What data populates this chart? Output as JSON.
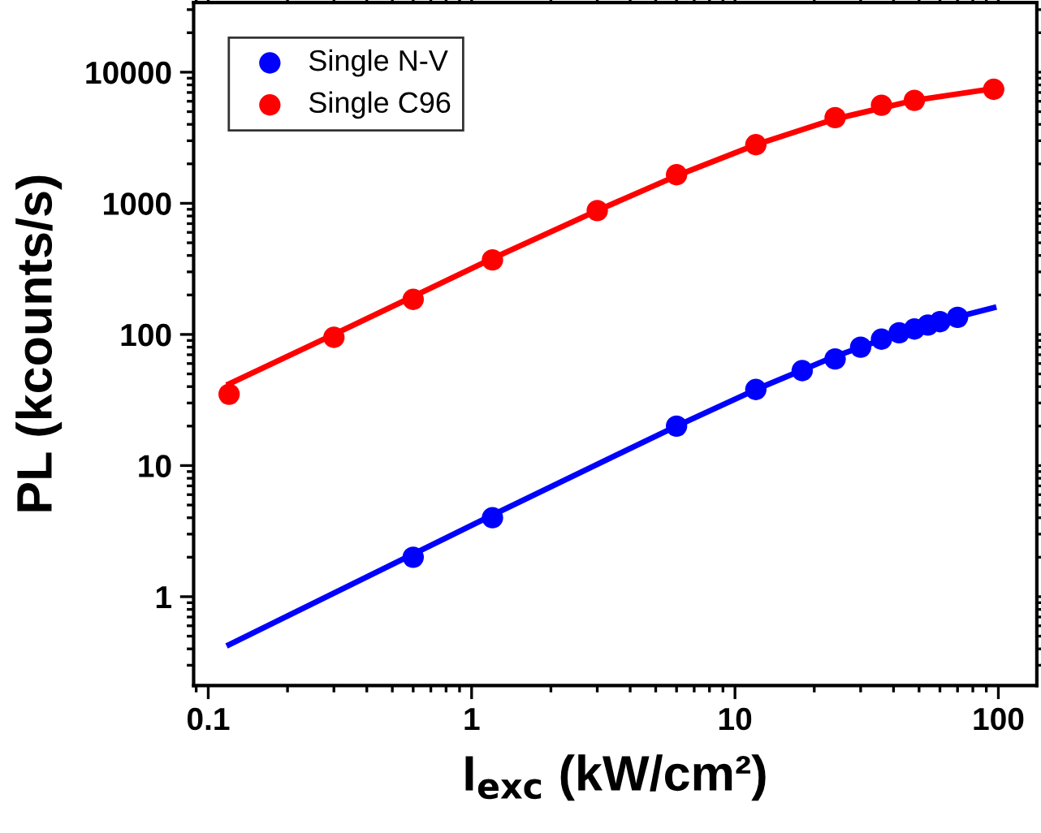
{
  "chart_data": {
    "type": "scatter",
    "xlabel": "I$_{exc}$ (kW/cm²)",
    "ylabel": "PL (kcounts/s)",
    "log": "xy",
    "xlim": [
      0.088,
      140
    ],
    "ylim": [
      0.21,
      34000
    ],
    "xticks": [
      0.1,
      1,
      10,
      100
    ],
    "yticks": [
      1,
      10,
      100,
      1000,
      10000
    ],
    "legend": "top left",
    "marker": "circle",
    "grid": false,
    "series": [
      {
        "name": "Single N-V",
        "color": "#0000ff",
        "x": [
          0.6,
          1.2,
          6,
          12,
          18,
          24,
          30,
          36,
          42,
          48,
          54,
          60,
          70
        ],
        "values": [
          2.0,
          4.0,
          20,
          38,
          53,
          65,
          80,
          92,
          103,
          110,
          118,
          125,
          135
        ]
      },
      {
        "name": "Single C96",
        "color": "#ff0000",
        "x": [
          0.12,
          0.3,
          0.6,
          1.2,
          3,
          6,
          12,
          24,
          36,
          48,
          96
        ],
        "values": [
          35,
          95,
          185,
          370,
          880,
          1650,
          2800,
          4500,
          5600,
          6100,
          7400
        ]
      },
      {
        "type": "line",
        "marker": "none",
        "color": "#0000ff",
        "x": [
          0.12,
          1.2,
          6,
          12,
          24,
          48,
          96
        ],
        "values": [
          0.43,
          4.2,
          20,
          38,
          68,
          112,
          160
        ]
      },
      {
        "type": "line",
        "marker": "none",
        "color": "#ff0000",
        "x": [
          0.12,
          0.3,
          0.6,
          1.2,
          3,
          6,
          12,
          24,
          48,
          96
        ],
        "values": [
          42,
          100,
          195,
          380,
          880,
          1620,
          2800,
          4400,
          6100,
          7500
        ]
      }
    ]
  }
}
